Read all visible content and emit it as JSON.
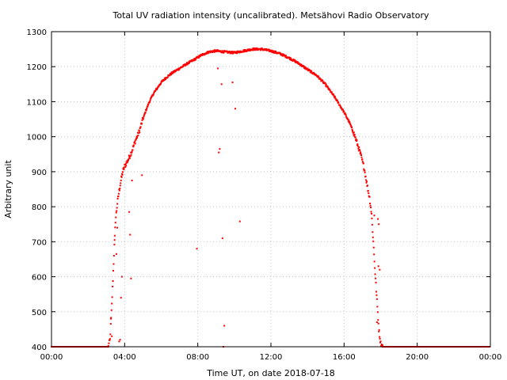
{
  "chart_data": {
    "type": "scatter",
    "title": "Total UV radiation intensity (uncalibrated). Metsähovi Radio Observatory",
    "xlabel": "Time UT, on date 2018-07-18",
    "ylabel": "Arbitrary unit",
    "xlim": [
      0,
      24
    ],
    "ylim": [
      400,
      1300
    ],
    "x_unit": "hours UT",
    "x_ticks": [
      0,
      4,
      8,
      12,
      16,
      20,
      24
    ],
    "x_tick_labels": [
      "00:00",
      "04:00",
      "08:00",
      "12:00",
      "16:00",
      "20:00",
      "00:00"
    ],
    "y_ticks": [
      400,
      500,
      600,
      700,
      800,
      900,
      1000,
      1100,
      1200,
      1300
    ],
    "y_tick_labels": [
      "400",
      "500",
      "600",
      "700",
      "800",
      "900",
      "1000",
      "1100",
      "1200",
      "1300"
    ],
    "grid": true,
    "marker_color": "#ff0000",
    "main_curve": [
      [
        3.1,
        400
      ],
      [
        3.2,
        420
      ],
      [
        3.3,
        520
      ],
      [
        3.4,
        640
      ],
      [
        3.5,
        760
      ],
      [
        3.6,
        810
      ],
      [
        3.7,
        845
      ],
      [
        3.8,
        875
      ],
      [
        3.9,
        900
      ],
      [
        4.0,
        915
      ],
      [
        4.2,
        935
      ],
      [
        4.4,
        960
      ],
      [
        4.6,
        990
      ],
      [
        4.8,
        1015
      ],
      [
        5.0,
        1050
      ],
      [
        5.2,
        1080
      ],
      [
        5.4,
        1105
      ],
      [
        5.6,
        1125
      ],
      [
        5.8,
        1140
      ],
      [
        6.0,
        1155
      ],
      [
        6.3,
        1170
      ],
      [
        6.6,
        1182
      ],
      [
        7.0,
        1195
      ],
      [
        7.4,
        1208
      ],
      [
        7.8,
        1220
      ],
      [
        8.2,
        1233
      ],
      [
        8.6,
        1242
      ],
      [
        9.0,
        1245
      ],
      [
        9.5,
        1242
      ],
      [
        10.0,
        1240
      ],
      [
        10.5,
        1245
      ],
      [
        11.0,
        1250
      ],
      [
        11.5,
        1250
      ],
      [
        12.0,
        1245
      ],
      [
        12.5,
        1237
      ],
      [
        13.0,
        1225
      ],
      [
        13.5,
        1210
      ],
      [
        14.0,
        1192
      ],
      [
        14.5,
        1175
      ],
      [
        15.0,
        1148
      ],
      [
        15.5,
        1112
      ],
      [
        16.0,
        1070
      ],
      [
        16.3,
        1040
      ],
      [
        16.6,
        1000
      ],
      [
        16.9,
        950
      ],
      [
        17.1,
        910
      ],
      [
        17.2,
        880
      ],
      [
        17.3,
        850
      ],
      [
        17.4,
        825
      ],
      [
        17.5,
        780
      ],
      [
        17.6,
        700
      ],
      [
        17.7,
        610
      ],
      [
        17.8,
        530
      ],
      [
        17.9,
        450
      ],
      [
        18.0,
        410
      ],
      [
        18.1,
        400
      ]
    ],
    "outliers": [
      [
        3.25,
        480
      ],
      [
        3.3,
        430
      ],
      [
        3.45,
        705
      ],
      [
        3.55,
        665
      ],
      [
        3.6,
        740
      ],
      [
        3.7,
        415
      ],
      [
        3.75,
        420
      ],
      [
        3.8,
        540
      ],
      [
        3.85,
        600
      ],
      [
        4.25,
        785
      ],
      [
        4.3,
        720
      ],
      [
        4.35,
        595
      ],
      [
        4.4,
        875
      ],
      [
        4.95,
        890
      ],
      [
        7.95,
        680
      ],
      [
        9.1,
        1195
      ],
      [
        9.15,
        955
      ],
      [
        9.2,
        965
      ],
      [
        9.3,
        1150
      ],
      [
        9.35,
        710
      ],
      [
        9.45,
        460
      ],
      [
        9.4,
        400
      ],
      [
        9.9,
        1155
      ],
      [
        10.05,
        1080
      ],
      [
        10.3,
        758
      ],
      [
        17.65,
        775
      ],
      [
        17.85,
        765
      ],
      [
        17.9,
        750
      ],
      [
        17.88,
        630
      ],
      [
        17.95,
        620
      ],
      [
        17.8,
        470
      ],
      [
        18.1,
        405
      ]
    ],
    "night_baseline": [
      [
        0,
        3.1,
        400
      ],
      [
        18.1,
        24,
        400
      ]
    ]
  }
}
